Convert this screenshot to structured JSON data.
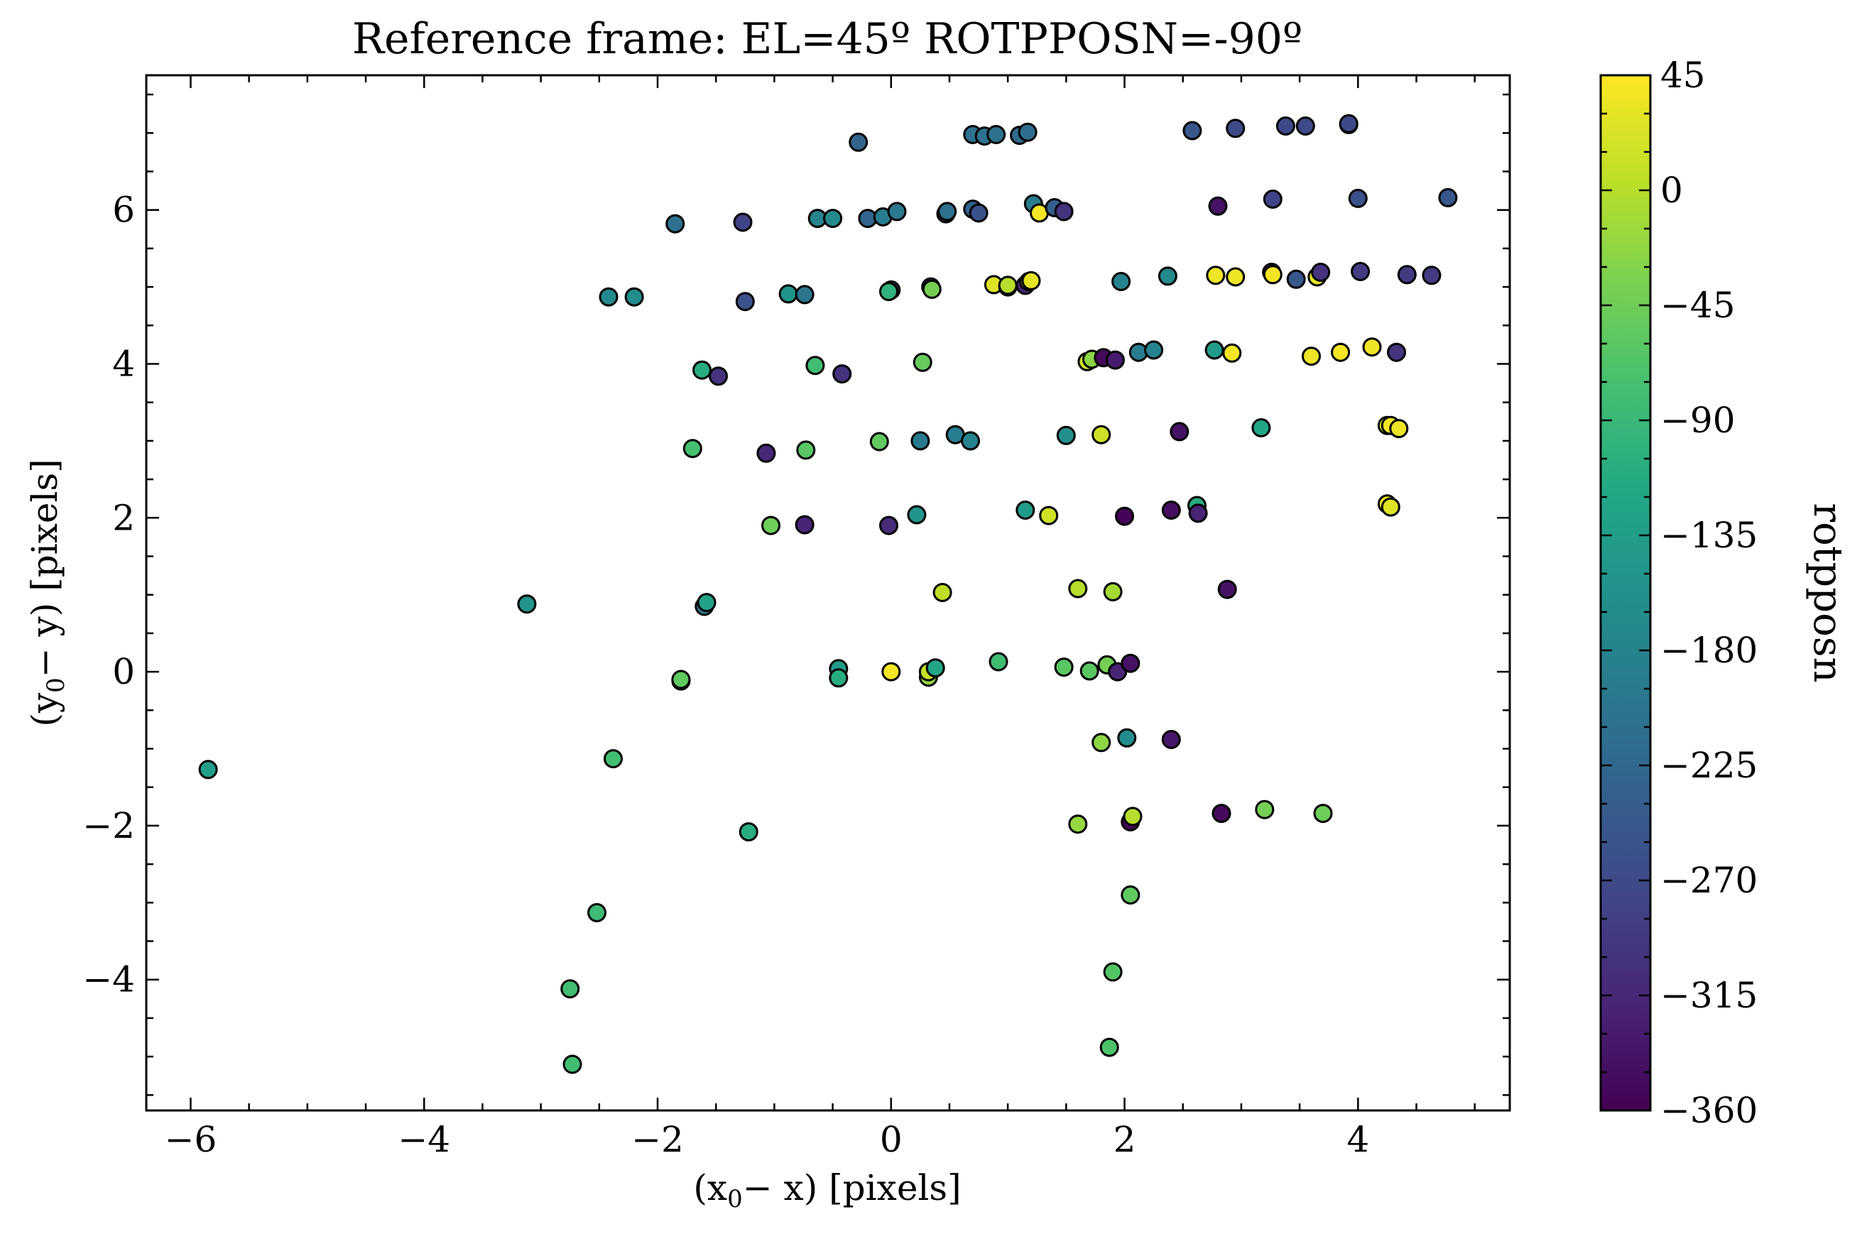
{
  "chart_data": {
    "type": "scatter",
    "title": "Reference frame: EL=45º ROTPPOSN=-90º",
    "xlabel": {
      "pre": "(x",
      "sub": "0",
      "post": "− x) [pixels]"
    },
    "ylabel": {
      "pre": "(y",
      "sub": "0",
      "post": "− y) [pixels]"
    },
    "xlim": [
      -6.38,
      5.3
    ],
    "ylim": [
      -5.7,
      7.75
    ],
    "x_ticks": [
      -6,
      -4,
      -2,
      0,
      2,
      4
    ],
    "x_tick_labels": [
      "−6",
      "−4",
      "−2",
      "0",
      "2",
      "4"
    ],
    "y_ticks": [
      -4,
      -2,
      0,
      2,
      4,
      6
    ],
    "y_tick_labels": [
      "−4",
      "−2",
      "0",
      "2",
      "4",
      "6"
    ],
    "grid": false,
    "colorbar": {
      "label": "rotpposn",
      "colormap": "viridis",
      "range": [
        -360,
        45
      ],
      "ticks": [
        45,
        0,
        -45,
        -90,
        -135,
        -180,
        -225,
        -270,
        -315,
        -360
      ],
      "tick_labels": [
        "45",
        "0",
        "−45",
        "−90",
        "−135",
        "−180",
        "−225",
        "−270",
        "−315",
        "−360"
      ]
    },
    "marker_edge_color": "#000000",
    "points": [
      {
        "x": -5.85,
        "y": -1.27,
        "c": -135
      },
      {
        "x": -3.12,
        "y": 0.88,
        "c": -150
      },
      {
        "x": -2.73,
        "y": -5.1,
        "c": -80
      },
      {
        "x": -2.75,
        "y": -4.12,
        "c": -80
      },
      {
        "x": -2.52,
        "y": -3.13,
        "c": -85
      },
      {
        "x": -2.38,
        "y": -1.13,
        "c": -80
      },
      {
        "x": -2.42,
        "y": 4.87,
        "c": -170
      },
      {
        "x": -2.2,
        "y": 4.87,
        "c": -165
      },
      {
        "x": -1.85,
        "y": 5.82,
        "c": -210
      },
      {
        "x": -1.8,
        "y": -0.12,
        "c": -60
      },
      {
        "x": -1.8,
        "y": -0.1,
        "c": -55
      },
      {
        "x": -1.7,
        "y": 2.9,
        "c": -75
      },
      {
        "x": -1.62,
        "y": 3.92,
        "c": -110
      },
      {
        "x": -1.6,
        "y": 0.85,
        "c": -200
      },
      {
        "x": -1.58,
        "y": 0.9,
        "c": -130
      },
      {
        "x": -1.48,
        "y": 3.84,
        "c": -300
      },
      {
        "x": -1.27,
        "y": 5.84,
        "c": -280
      },
      {
        "x": -1.25,
        "y": 4.81,
        "c": -260
      },
      {
        "x": -1.22,
        "y": -2.08,
        "c": -110
      },
      {
        "x": -1.07,
        "y": 2.84,
        "c": -315
      },
      {
        "x": -1.03,
        "y": 1.9,
        "c": -45
      },
      {
        "x": -0.88,
        "y": 4.91,
        "c": -150
      },
      {
        "x": -0.74,
        "y": 4.9,
        "c": -200
      },
      {
        "x": -0.74,
        "y": 1.91,
        "c": -320
      },
      {
        "x": -0.73,
        "y": 2.88,
        "c": -60
      },
      {
        "x": -0.65,
        "y": 3.98,
        "c": -80
      },
      {
        "x": -0.63,
        "y": 5.89,
        "c": -180
      },
      {
        "x": -0.5,
        "y": 5.89,
        "c": -170
      },
      {
        "x": -0.45,
        "y": 0.04,
        "c": -140
      },
      {
        "x": -0.45,
        "y": -0.08,
        "c": -110
      },
      {
        "x": -0.42,
        "y": 3.87,
        "c": -300
      },
      {
        "x": -0.28,
        "y": 6.88,
        "c": -230
      },
      {
        "x": -0.2,
        "y": 5.89,
        "c": -230
      },
      {
        "x": -0.1,
        "y": 2.99,
        "c": -55
      },
      {
        "x": -0.07,
        "y": 5.91,
        "c": -190
      },
      {
        "x": -0.02,
        "y": 1.9,
        "c": -310
      },
      {
        "x": 0.0,
        "y": 4.96,
        "c": -310
      },
      {
        "x": -0.02,
        "y": 4.94,
        "c": -100
      },
      {
        "x": 0.0,
        "y": 0.0,
        "c": 40
      },
      {
        "x": 0.05,
        "y": 5.98,
        "c": -200
      },
      {
        "x": 0.22,
        "y": 2.04,
        "c": -150
      },
      {
        "x": 0.25,
        "y": 3.0,
        "c": -195
      },
      {
        "x": 0.27,
        "y": 4.02,
        "c": -50
      },
      {
        "x": 0.32,
        "y": -0.07,
        "c": -20
      },
      {
        "x": 0.34,
        "y": 5.0,
        "c": -300
      },
      {
        "x": 0.32,
        "y": 0.0,
        "c": 10
      },
      {
        "x": 0.35,
        "y": 4.97,
        "c": -40
      },
      {
        "x": 0.38,
        "y": 0.05,
        "c": -120
      },
      {
        "x": 0.44,
        "y": 1.03,
        "c": 5
      },
      {
        "x": 0.47,
        "y": 5.95,
        "c": -260
      },
      {
        "x": 0.48,
        "y": 5.98,
        "c": -210
      },
      {
        "x": 0.55,
        "y": 3.08,
        "c": -190
      },
      {
        "x": 0.68,
        "y": 3.0,
        "c": -180
      },
      {
        "x": 0.7,
        "y": 6.98,
        "c": -210
      },
      {
        "x": 0.7,
        "y": 6.01,
        "c": -230
      },
      {
        "x": 0.75,
        "y": 5.96,
        "c": -260
      },
      {
        "x": 0.8,
        "y": 6.96,
        "c": -210
      },
      {
        "x": 0.88,
        "y": 5.03,
        "c": 25
      },
      {
        "x": 0.9,
        "y": 6.98,
        "c": -210
      },
      {
        "x": 0.92,
        "y": 0.13,
        "c": -80
      },
      {
        "x": 1.0,
        "y": 5.0,
        "c": 15
      },
      {
        "x": 1.0,
        "y": 5.02,
        "c": 0
      },
      {
        "x": 1.1,
        "y": 6.97,
        "c": -220
      },
      {
        "x": 1.15,
        "y": 5.02,
        "c": -320
      },
      {
        "x": 1.15,
        "y": 2.1,
        "c": -140
      },
      {
        "x": 1.17,
        "y": 7.01,
        "c": -215
      },
      {
        "x": 1.18,
        "y": 5.07,
        "c": 40
      },
      {
        "x": 1.2,
        "y": 5.08,
        "c": 30
      },
      {
        "x": 1.22,
        "y": 6.08,
        "c": -190
      },
      {
        "x": 1.27,
        "y": 5.96,
        "c": 40
      },
      {
        "x": 1.35,
        "y": 2.03,
        "c": 15
      },
      {
        "x": 1.4,
        "y": 6.03,
        "c": -240
      },
      {
        "x": 1.48,
        "y": 5.98,
        "c": -300
      },
      {
        "x": 1.48,
        "y": 0.06,
        "c": -60
      },
      {
        "x": 1.5,
        "y": 3.07,
        "c": -160
      },
      {
        "x": 1.6,
        "y": 1.08,
        "c": 0
      },
      {
        "x": 1.6,
        "y": -1.98,
        "c": -20
      },
      {
        "x": 1.68,
        "y": 4.03,
        "c": 15
      },
      {
        "x": 1.7,
        "y": 0.01,
        "c": -60
      },
      {
        "x": 1.72,
        "y": 4.06,
        "c": -25
      },
      {
        "x": 1.8,
        "y": 3.08,
        "c": 15
      },
      {
        "x": 1.8,
        "y": -0.92,
        "c": -25
      },
      {
        "x": 1.82,
        "y": 4.08,
        "c": -350
      },
      {
        "x": 1.85,
        "y": 0.09,
        "c": -40
      },
      {
        "x": 1.87,
        "y": -4.88,
        "c": -70
      },
      {
        "x": 1.9,
        "y": -3.9,
        "c": -65
      },
      {
        "x": 1.9,
        "y": 1.04,
        "c": -10
      },
      {
        "x": 1.92,
        "y": 4.05,
        "c": -330
      },
      {
        "x": 1.94,
        "y": 0.0,
        "c": -320
      },
      {
        "x": 1.97,
        "y": 5.07,
        "c": -180
      },
      {
        "x": 2.0,
        "y": 2.02,
        "c": -355
      },
      {
        "x": 2.02,
        "y": -0.86,
        "c": -165
      },
      {
        "x": 2.05,
        "y": -1.95,
        "c": -355
      },
      {
        "x": 2.05,
        "y": 0.11,
        "c": -340
      },
      {
        "x": 2.07,
        "y": -1.88,
        "c": 0
      },
      {
        "x": 2.05,
        "y": -2.9,
        "c": -55
      },
      {
        "x": 2.12,
        "y": 4.15,
        "c": -190
      },
      {
        "x": 2.25,
        "y": 4.18,
        "c": -180
      },
      {
        "x": 2.37,
        "y": 5.14,
        "c": -170
      },
      {
        "x": 2.4,
        "y": 2.1,
        "c": -345
      },
      {
        "x": 2.4,
        "y": -0.88,
        "c": -335
      },
      {
        "x": 2.47,
        "y": 3.12,
        "c": -340
      },
      {
        "x": 2.58,
        "y": 7.03,
        "c": -250
      },
      {
        "x": 2.62,
        "y": 2.16,
        "c": -110
      },
      {
        "x": 2.63,
        "y": 2.06,
        "c": -320
      },
      {
        "x": 2.77,
        "y": 4.18,
        "c": -140
      },
      {
        "x": 2.78,
        "y": 5.15,
        "c": 35
      },
      {
        "x": 2.8,
        "y": 6.05,
        "c": -340
      },
      {
        "x": 2.88,
        "y": 1.07,
        "c": -340
      },
      {
        "x": 2.83,
        "y": -1.84,
        "c": -350
      },
      {
        "x": 2.92,
        "y": 4.14,
        "c": 40
      },
      {
        "x": 2.95,
        "y": 7.06,
        "c": -270
      },
      {
        "x": 2.95,
        "y": 5.13,
        "c": 35
      },
      {
        "x": 3.17,
        "y": 3.17,
        "c": -120
      },
      {
        "x": 3.2,
        "y": -1.79,
        "c": -40
      },
      {
        "x": 3.26,
        "y": 5.19,
        "c": -300
      },
      {
        "x": 3.27,
        "y": 6.14,
        "c": -280
      },
      {
        "x": 3.27,
        "y": 5.16,
        "c": 40
      },
      {
        "x": 3.38,
        "y": 7.09,
        "c": -270
      },
      {
        "x": 3.47,
        "y": 5.1,
        "c": -250
      },
      {
        "x": 3.55,
        "y": 7.09,
        "c": -270
      },
      {
        "x": 3.6,
        "y": 4.1,
        "c": 35
      },
      {
        "x": 3.65,
        "y": 5.13,
        "c": 30
      },
      {
        "x": 3.68,
        "y": 5.19,
        "c": -300
      },
      {
        "x": 3.7,
        "y": -1.84,
        "c": -45
      },
      {
        "x": 3.85,
        "y": 4.15,
        "c": 40
      },
      {
        "x": 3.92,
        "y": 7.11,
        "c": -280
      },
      {
        "x": 3.92,
        "y": 7.12,
        "c": -270
      },
      {
        "x": 4.0,
        "y": 6.15,
        "c": -260
      },
      {
        "x": 4.02,
        "y": 5.2,
        "c": -290
      },
      {
        "x": 4.12,
        "y": 4.22,
        "c": 35
      },
      {
        "x": 4.25,
        "y": 2.18,
        "c": 35
      },
      {
        "x": 4.25,
        "y": 3.2,
        "c": 30
      },
      {
        "x": 4.28,
        "y": 2.14,
        "c": 25
      },
      {
        "x": 4.28,
        "y": 3.2,
        "c": 40
      },
      {
        "x": 4.33,
        "y": 4.15,
        "c": -300
      },
      {
        "x": 4.35,
        "y": 3.16,
        "c": 35
      },
      {
        "x": 4.42,
        "y": 5.16,
        "c": -290
      },
      {
        "x": 4.63,
        "y": 5.15,
        "c": -290
      },
      {
        "x": 4.77,
        "y": 6.16,
        "c": -250
      }
    ]
  }
}
